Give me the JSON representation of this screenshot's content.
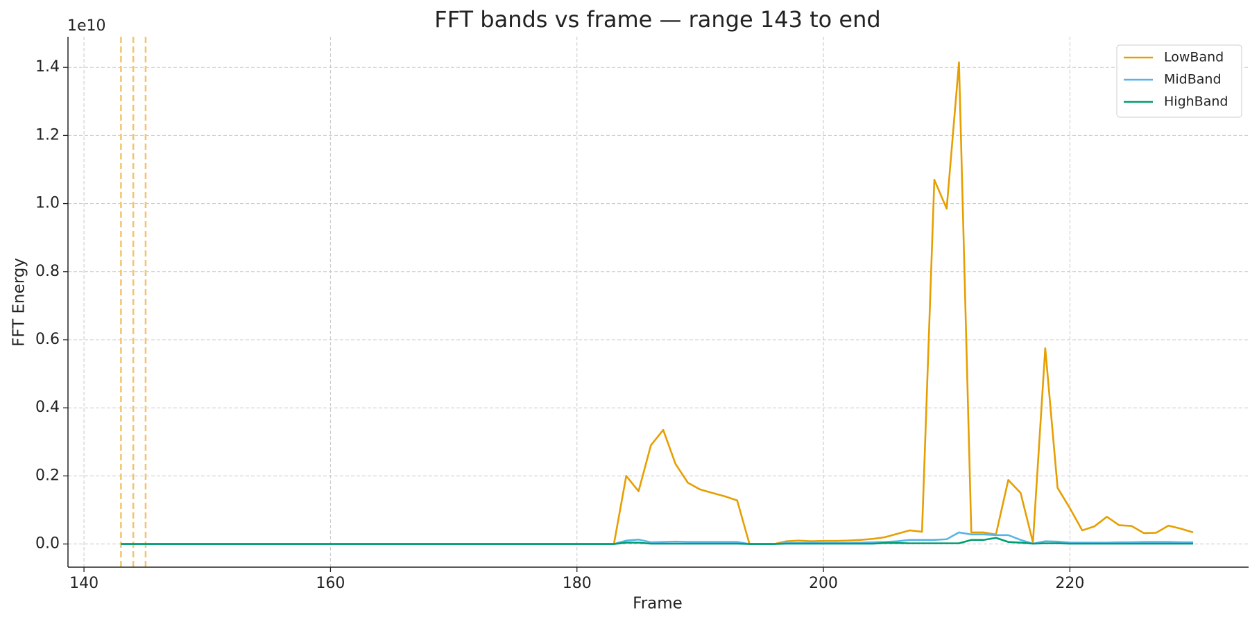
{
  "chart_data": {
    "type": "line",
    "title": "FFT bands vs frame — range 143 to end",
    "x_label": "Frame",
    "y_label": "FFT Energy",
    "offset_label": "1e10",
    "x": [
      143,
      144,
      145,
      146,
      147,
      148,
      149,
      150,
      151,
      152,
      153,
      154,
      155,
      156,
      157,
      158,
      159,
      160,
      161,
      162,
      163,
      164,
      165,
      166,
      167,
      168,
      169,
      170,
      171,
      172,
      173,
      174,
      175,
      176,
      177,
      178,
      179,
      180,
      181,
      182,
      183,
      184,
      185,
      186,
      187,
      188,
      189,
      190,
      191,
      192,
      193,
      194,
      195,
      196,
      197,
      198,
      199,
      200,
      201,
      202,
      203,
      204,
      205,
      206,
      207,
      208,
      209,
      210,
      211,
      212,
      213,
      214,
      215,
      216,
      217,
      218,
      219,
      220,
      221,
      222,
      223,
      224,
      225,
      226,
      227,
      228,
      229,
      230
    ],
    "series": [
      {
        "name": "LowBand",
        "color": "#E69F00",
        "values": [
          0,
          0,
          0,
          0,
          0,
          0,
          0,
          0,
          0,
          0,
          0,
          0,
          0,
          0,
          0,
          0,
          0,
          0,
          0,
          0,
          0,
          0,
          0,
          0,
          0,
          0,
          0,
          0,
          0,
          0,
          0,
          0,
          0,
          0,
          0,
          0,
          0,
          0,
          0,
          0,
          0,
          0.2,
          0.155,
          0.29,
          0.335,
          0.235,
          0.18,
          0.16,
          0.15,
          0.14,
          0.128,
          0,
          0,
          0,
          0.008,
          0.01,
          0.008,
          0.009,
          0.009,
          0.01,
          0.012,
          0.015,
          0.02,
          0.03,
          0.04,
          0.036,
          1.07,
          0.985,
          1.415,
          0.034,
          0.034,
          0.028,
          0.188,
          0.15,
          0.005,
          0.575,
          0.165,
          0.105,
          0.04,
          0.052,
          0.08,
          0.055,
          0.053,
          0.032,
          0.033,
          0.054,
          0.045,
          0.034
        ]
      },
      {
        "name": "MidBand",
        "color": "#56B4E9",
        "values": [
          0,
          0,
          0,
          0,
          0,
          0,
          0,
          0,
          0,
          0,
          0,
          0,
          0,
          0,
          0,
          0,
          0,
          0,
          0,
          0,
          0,
          0,
          0,
          0,
          0,
          0,
          0,
          0,
          0,
          0,
          0,
          0,
          0,
          0,
          0,
          0,
          0,
          0,
          0,
          0,
          0,
          0.01,
          0.013,
          0.005,
          0.006,
          0.007,
          0.006,
          0.006,
          0.006,
          0.006,
          0.006,
          0,
          0,
          0,
          0.003,
          0.003,
          0.003,
          0.003,
          0.003,
          0.003,
          0.004,
          0.005,
          0.006,
          0.008,
          0.012,
          0.012,
          0.012,
          0.014,
          0.034,
          0.028,
          0.028,
          0.026,
          0.026,
          0.012,
          0.001,
          0.008,
          0.007,
          0.004,
          0.004,
          0.004,
          0.004,
          0.005,
          0.005,
          0.006,
          0.006,
          0.006,
          0.005,
          0.005
        ]
      },
      {
        "name": "HighBand",
        "color": "#009E73",
        "values": [
          0,
          0,
          0,
          0,
          0,
          0,
          0,
          0,
          0,
          0,
          0,
          0,
          0,
          0,
          0,
          0,
          0,
          0,
          0,
          0,
          0,
          0,
          0,
          0,
          0,
          0,
          0,
          0,
          0,
          0,
          0,
          0,
          0,
          0,
          0,
          0,
          0,
          0,
          0,
          0,
          0,
          0.004,
          0.004,
          0.001,
          0.001,
          0.001,
          0.001,
          0.001,
          0.001,
          0.001,
          0.001,
          0,
          0,
          0,
          0.001,
          0.001,
          0.001,
          0.001,
          0.001,
          0.001,
          0.001,
          0.001,
          0.003,
          0.003,
          0.002,
          0.002,
          0.002,
          0.002,
          0.002,
          0.012,
          0.012,
          0.018,
          0.006,
          0.004,
          0.001,
          0.002,
          0.002,
          0.001,
          0.001,
          0.001,
          0.001,
          0.001,
          0.001,
          0.001,
          0.001,
          0.001,
          0.001,
          0.001
        ]
      }
    ],
    "vlines": [
      143,
      144,
      145
    ],
    "vline_color": "#F2C46B",
    "xlim": [
      138.7,
      234.5
    ],
    "xticks": [
      140,
      160,
      180,
      200,
      220
    ],
    "ylim": [
      -0.068,
      1.49
    ],
    "yticks": [
      {
        "value": 0,
        "label": "0.0"
      },
      0.2,
      0.4,
      0.6,
      0.8,
      {
        "value": 1,
        "label": "1.0"
      },
      1.2,
      1.4
    ],
    "grid": true,
    "legend": "upper right"
  }
}
